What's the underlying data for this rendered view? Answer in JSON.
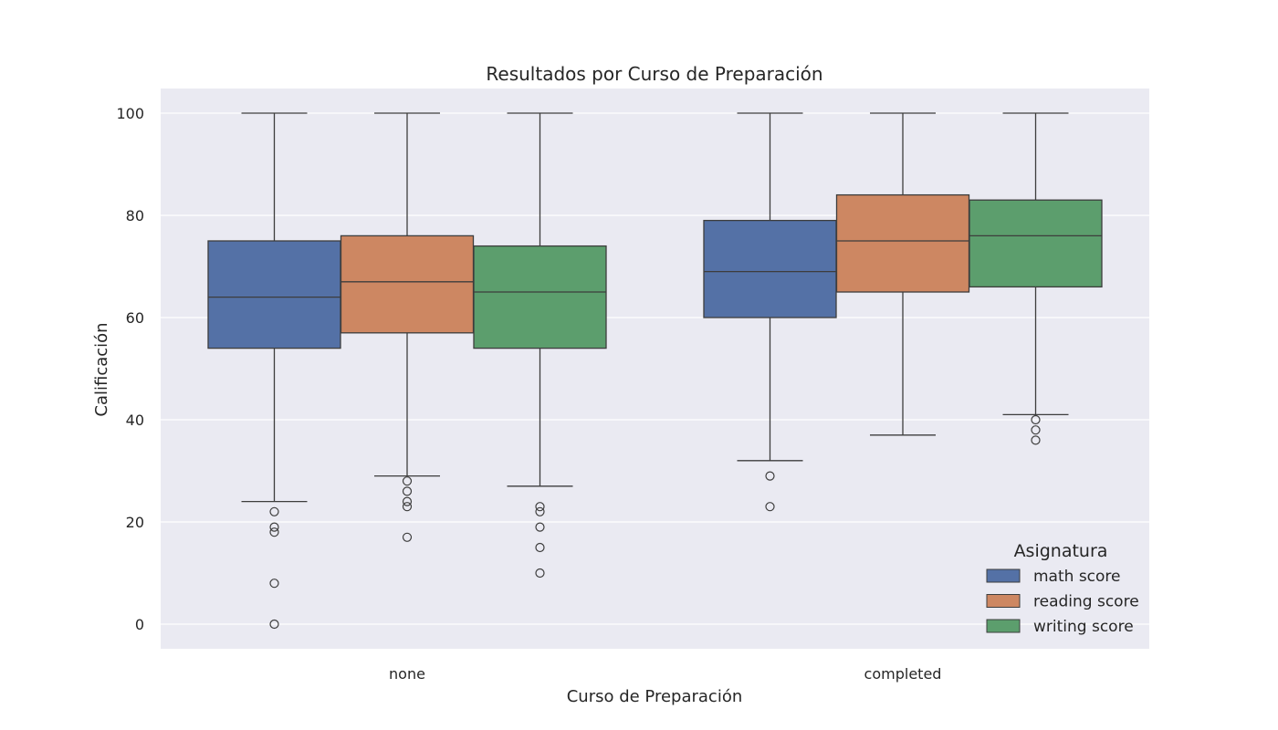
{
  "chart_data": {
    "type": "box",
    "title": "Resultados por Curso de Preparación",
    "xlabel": "Curso de Preparación",
    "ylabel": "Calificación",
    "categories": [
      "none",
      "completed"
    ],
    "ylim": [
      -5,
      105
    ],
    "yticks": [
      0,
      20,
      40,
      60,
      80,
      100
    ],
    "grid": true,
    "legend": {
      "title": "Asignatura",
      "position": "bottom-right"
    },
    "series": [
      {
        "name": "math score",
        "color": "#5471a6",
        "boxes": [
          {
            "whislo": 24,
            "q1": 54,
            "median": 64,
            "q3": 75,
            "whishi": 100,
            "fliers": [
              22,
              19,
              18,
              8,
              0
            ]
          },
          {
            "whislo": 32,
            "q1": 60,
            "median": 69,
            "q3": 79,
            "whishi": 100,
            "fliers": [
              29,
              23
            ]
          }
        ]
      },
      {
        "name": "reading score",
        "color": "#cd8762",
        "boxes": [
          {
            "whislo": 29,
            "q1": 57,
            "median": 67,
            "q3": 76,
            "whishi": 100,
            "fliers": [
              28,
              26,
              24,
              23,
              17
            ]
          },
          {
            "whislo": 37,
            "q1": 65,
            "median": 75,
            "q3": 84,
            "whishi": 100,
            "fliers": []
          }
        ]
      },
      {
        "name": "writing score",
        "color": "#5c9e6d",
        "boxes": [
          {
            "whislo": 27,
            "q1": 54,
            "median": 65,
            "q3": 74,
            "whishi": 100,
            "fliers": [
              23,
              22,
              19,
              15,
              10
            ]
          },
          {
            "whislo": 41,
            "q1": 66,
            "median": 76,
            "q3": 83,
            "whishi": 100,
            "fliers": [
              40,
              38,
              36
            ]
          }
        ]
      }
    ]
  }
}
